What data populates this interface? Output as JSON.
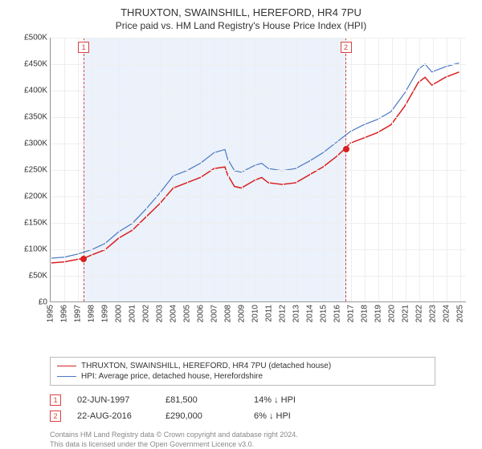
{
  "title": "THRUXTON, SWAINSHILL, HEREFORD, HR4 7PU",
  "subtitle": "Price paid vs. HM Land Registry's House Price Index (HPI)",
  "chart": {
    "type": "line",
    "xlim": [
      1995,
      2025.5
    ],
    "ylim": [
      0,
      500000
    ],
    "ytick_step": 50000,
    "ylabels": [
      "£0",
      "£50K",
      "£100K",
      "£150K",
      "£200K",
      "£250K",
      "£300K",
      "£350K",
      "£400K",
      "£450K",
      "£500K"
    ],
    "xticks": [
      1995,
      1996,
      1997,
      1998,
      1999,
      2000,
      2001,
      2002,
      2003,
      2004,
      2005,
      2006,
      2007,
      2008,
      2009,
      2010,
      2011,
      2012,
      2013,
      2014,
      2015,
      2016,
      2017,
      2018,
      2019,
      2020,
      2021,
      2022,
      2023,
      2024,
      2025
    ],
    "shaded_region": {
      "start": 1997.42,
      "end": 2016.64
    },
    "background_color": "#ffffff",
    "grid_color": "#eeeeee",
    "series": [
      {
        "name": "THRUXTON, SWAINSHILL, HEREFORD, HR4 7PU (detached house)",
        "color": "#d92020",
        "line_width": 1.5,
        "points": [
          [
            1995,
            73000
          ],
          [
            1996,
            75000
          ],
          [
            1997,
            80000
          ],
          [
            1997.42,
            81500
          ],
          [
            1998,
            88000
          ],
          [
            1999,
            98000
          ],
          [
            2000,
            120000
          ],
          [
            2001,
            135000
          ],
          [
            2002,
            160000
          ],
          [
            2003,
            185000
          ],
          [
            2004,
            215000
          ],
          [
            2005,
            225000
          ],
          [
            2006,
            235000
          ],
          [
            2007,
            252000
          ],
          [
            2007.8,
            255000
          ],
          [
            2008,
            240000
          ],
          [
            2008.5,
            218000
          ],
          [
            2009,
            215000
          ],
          [
            2010,
            230000
          ],
          [
            2010.5,
            235000
          ],
          [
            2011,
            225000
          ],
          [
            2012,
            222000
          ],
          [
            2013,
            225000
          ],
          [
            2014,
            240000
          ],
          [
            2015,
            255000
          ],
          [
            2016,
            275000
          ],
          [
            2016.64,
            290000
          ],
          [
            2017,
            300000
          ],
          [
            2018,
            310000
          ],
          [
            2019,
            320000
          ],
          [
            2020,
            335000
          ],
          [
            2021,
            370000
          ],
          [
            2022,
            415000
          ],
          [
            2022.5,
            425000
          ],
          [
            2023,
            410000
          ],
          [
            2024,
            425000
          ],
          [
            2025,
            435000
          ]
        ]
      },
      {
        "name": "HPI: Average price, detached house, Herefordshire",
        "color": "#4a78c4",
        "line_width": 1.2,
        "points": [
          [
            1995,
            82000
          ],
          [
            1996,
            84000
          ],
          [
            1997,
            90000
          ],
          [
            1998,
            98000
          ],
          [
            1999,
            110000
          ],
          [
            2000,
            132000
          ],
          [
            2001,
            148000
          ],
          [
            2002,
            175000
          ],
          [
            2003,
            205000
          ],
          [
            2004,
            238000
          ],
          [
            2005,
            248000
          ],
          [
            2006,
            262000
          ],
          [
            2007,
            282000
          ],
          [
            2007.8,
            288000
          ],
          [
            2008,
            270000
          ],
          [
            2008.5,
            248000
          ],
          [
            2009,
            245000
          ],
          [
            2010,
            258000
          ],
          [
            2010.5,
            262000
          ],
          [
            2011,
            252000
          ],
          [
            2012,
            248000
          ],
          [
            2013,
            252000
          ],
          [
            2014,
            266000
          ],
          [
            2015,
            282000
          ],
          [
            2016,
            302000
          ],
          [
            2017,
            322000
          ],
          [
            2018,
            335000
          ],
          [
            2019,
            345000
          ],
          [
            2020,
            360000
          ],
          [
            2021,
            395000
          ],
          [
            2022,
            440000
          ],
          [
            2022.5,
            450000
          ],
          [
            2023,
            435000
          ],
          [
            2024,
            445000
          ],
          [
            2025,
            452000
          ]
        ]
      }
    ],
    "markers": [
      {
        "label": "1",
        "x": 1997.42,
        "y_top": 70,
        "point_y": 81500,
        "point_color": "#d92020"
      },
      {
        "label": "2",
        "x": 2016.64,
        "y_top": 70,
        "point_y": 290000,
        "point_color": "#d92020"
      }
    ]
  },
  "legend": [
    {
      "color": "#d92020",
      "width": 1.8,
      "label": "THRUXTON, SWAINSHILL, HEREFORD, HR4 7PU (detached house)"
    },
    {
      "color": "#4a78c4",
      "width": 1.4,
      "label": "HPI: Average price, detached house, Herefordshire"
    }
  ],
  "sales": [
    {
      "label": "1",
      "date": "02-JUN-1997",
      "price": "£81,500",
      "pct": "14%",
      "arrow": "↓",
      "suffix": "HPI"
    },
    {
      "label": "2",
      "date": "22-AUG-2016",
      "price": "£290,000",
      "pct": "6%",
      "arrow": "↓",
      "suffix": "HPI"
    }
  ],
  "footer_line1": "Contains HM Land Registry data © Crown copyright and database right 2024.",
  "footer_line2": "This data is licensed under the Open Government Licence v3.0."
}
